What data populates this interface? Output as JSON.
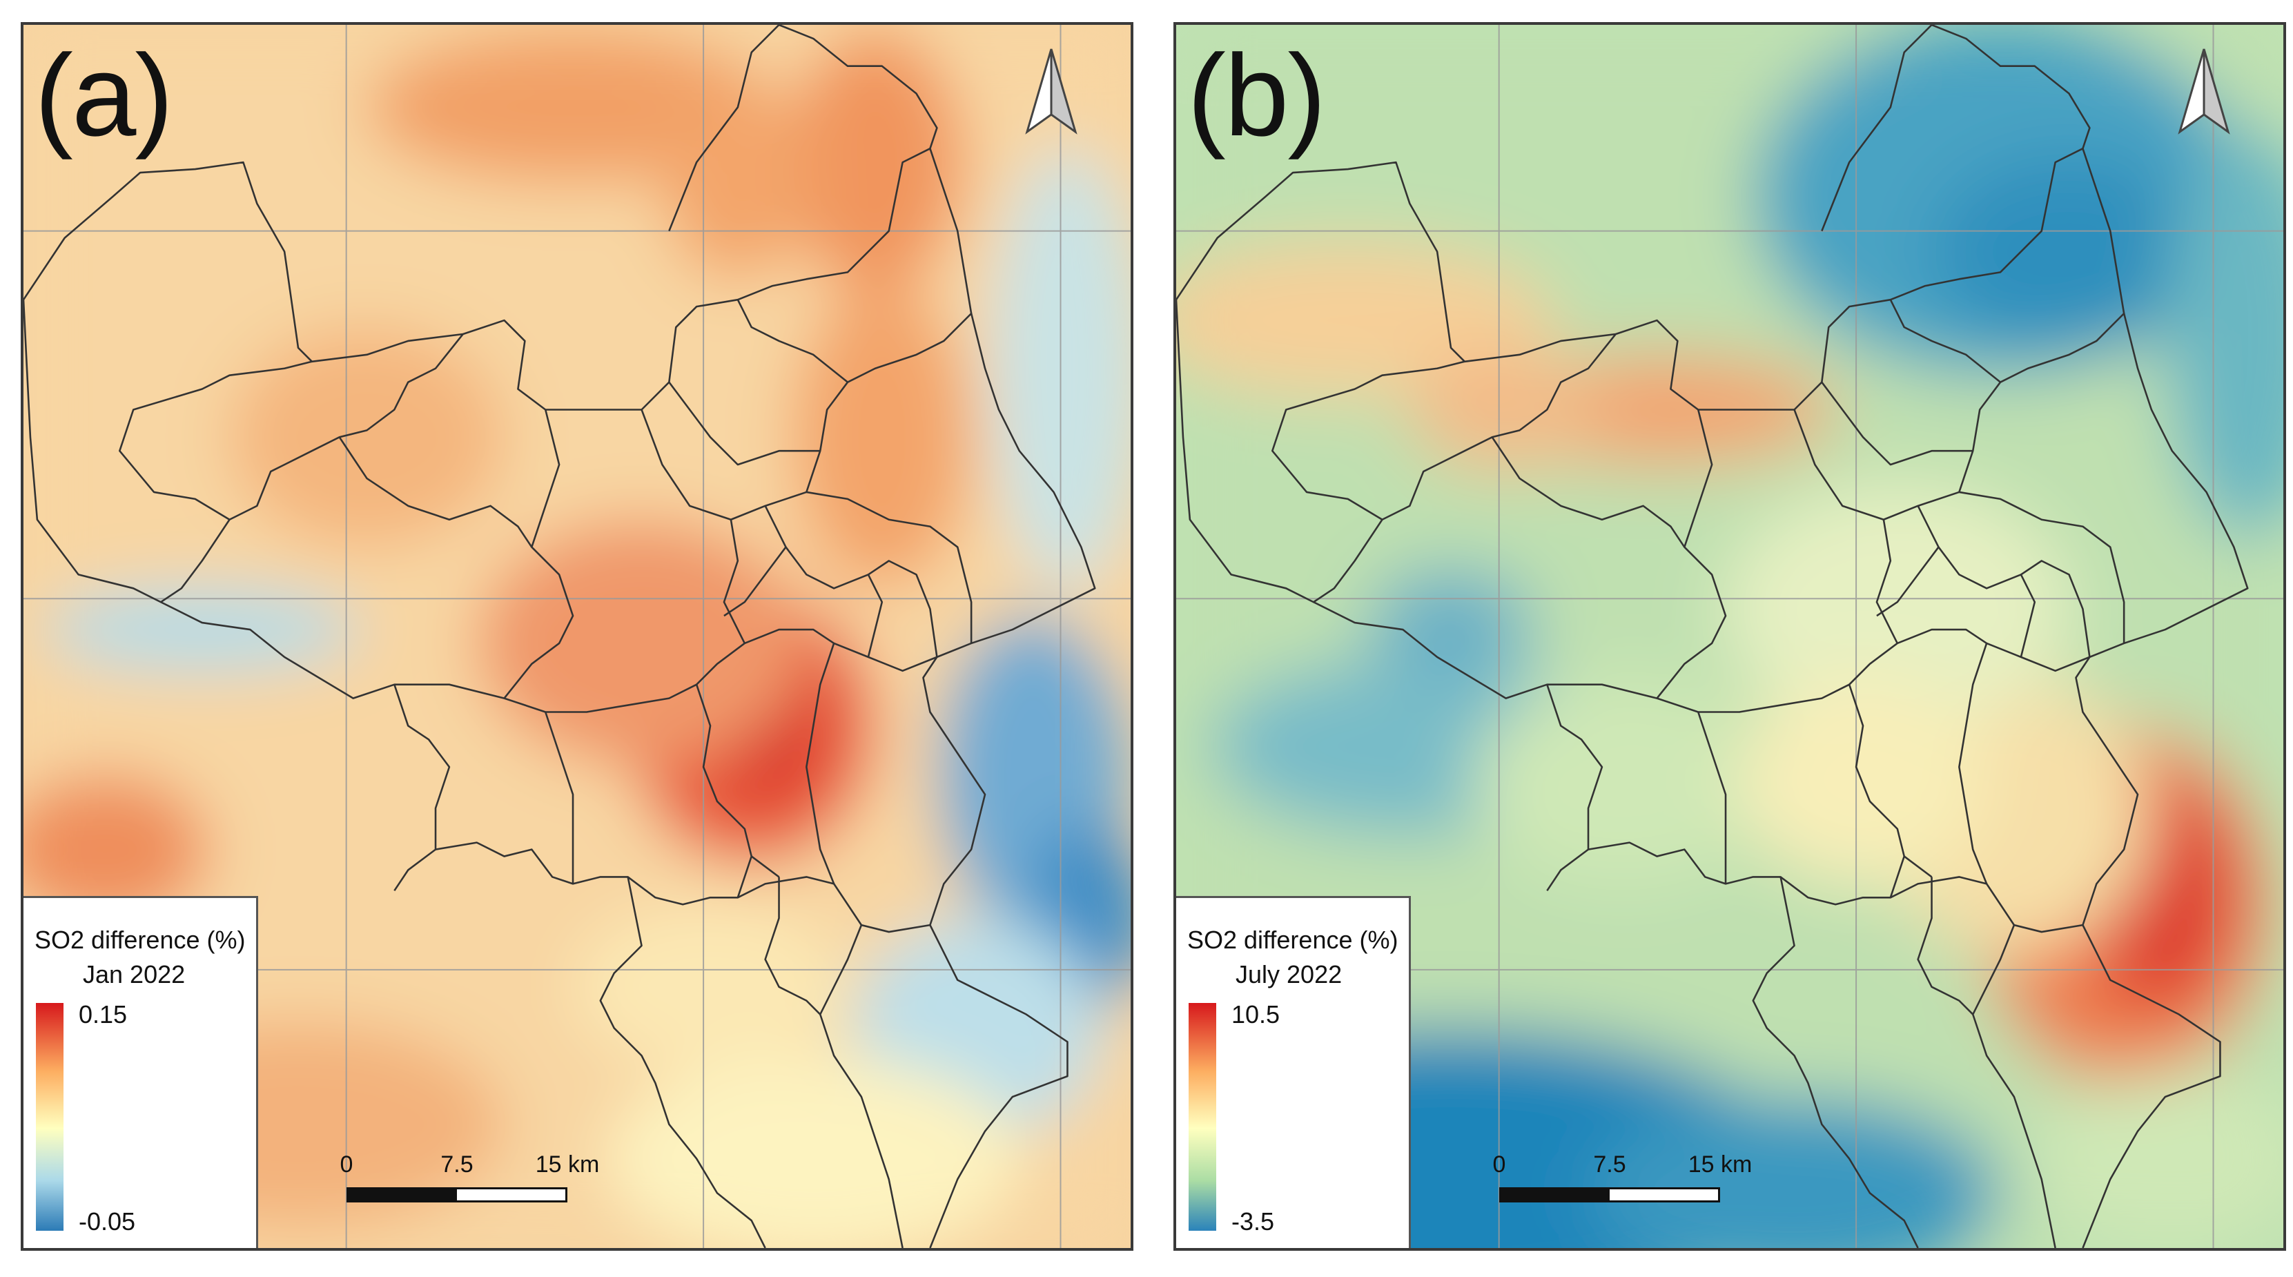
{
  "panels": [
    {
      "label": "(a)",
      "legend": {
        "title": "SO2 difference (%)",
        "period": "Jan 2022",
        "max": "0.15",
        "min": "-0.05"
      },
      "scale": {
        "labels": [
          "0",
          "7.5",
          "15 km"
        ]
      },
      "colors": {
        "background": "#f6d9a5"
      }
    },
    {
      "label": "(b)",
      "legend": {
        "title": "SO2 difference (%)",
        "period": "July 2022",
        "max": "10.5",
        "min": "-3.5"
      },
      "scale": {
        "labels": [
          "0",
          "7.5",
          "15 km"
        ]
      },
      "colors": {
        "background": "#bfe2b2"
      }
    }
  ],
  "icons": {
    "north_arrow": "north-arrow-icon"
  },
  "colorramp": [
    "#d7191c",
    "#fdae61",
    "#ffffbf",
    "#abd9e9",
    "#2c7bb6"
  ]
}
